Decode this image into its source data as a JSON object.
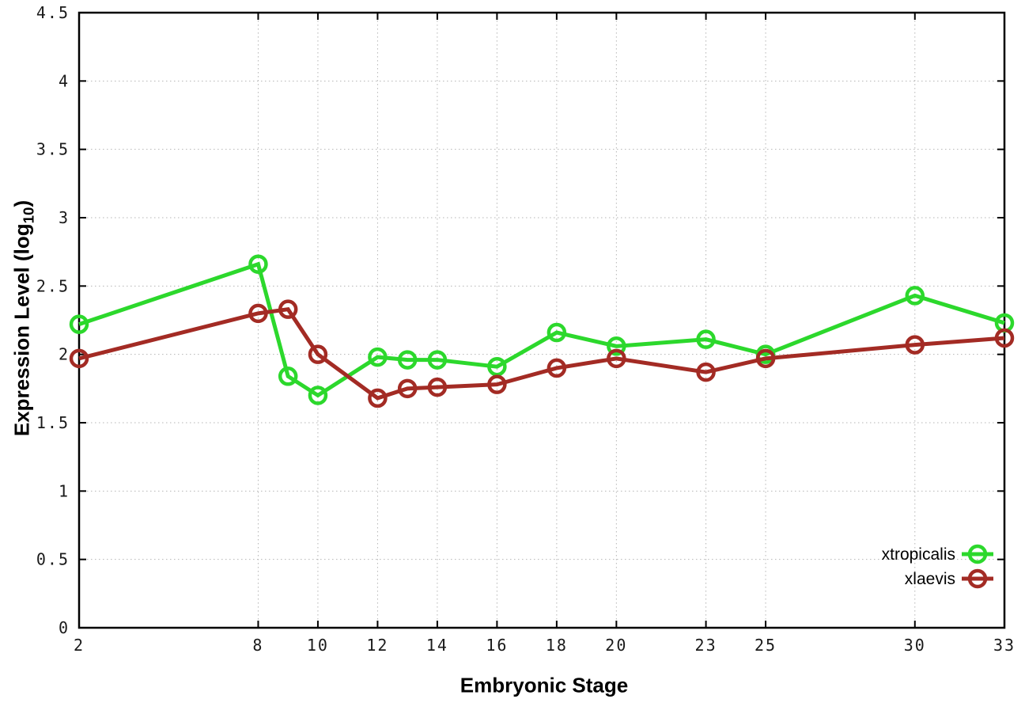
{
  "figure": {
    "background_color": "#ffffff",
    "border_color": "#000000",
    "grid_color": "#b5b5b5"
  },
  "chart_data": {
    "type": "line",
    "title": "",
    "xlabel": "Embryonic Stage",
    "ylabel": "Expression Level (log10)",
    "ylabel_parts": {
      "main": "Expression Level (log",
      "sub": "10",
      "suffix": ")"
    },
    "xlim": [
      2,
      33
    ],
    "ylim": [
      0,
      4.5
    ],
    "x_ticks": [
      2,
      8,
      10,
      12,
      14,
      16,
      18,
      20,
      23,
      25,
      30,
      33
    ],
    "y_ticks": [
      0,
      0.5,
      1,
      1.5,
      2,
      2.5,
      3,
      3.5,
      4,
      4.5
    ],
    "grid": "dotted",
    "legend_position": "inside-bottom-right",
    "x": [
      2,
      8,
      9,
      10,
      12,
      13,
      14,
      16,
      18,
      20,
      23,
      25,
      30,
      33
    ],
    "series": [
      {
        "name": "xtropicalis",
        "color": "#2cd82c",
        "marker": "open-circle",
        "values": [
          2.22,
          2.66,
          1.84,
          1.7,
          1.98,
          1.96,
          1.96,
          1.91,
          2.16,
          2.06,
          2.11,
          2.0,
          2.43,
          2.23
        ]
      },
      {
        "name": "xlaevis",
        "color": "#a32b24",
        "marker": "open-circle",
        "values": [
          1.97,
          2.3,
          2.33,
          2.0,
          1.68,
          1.75,
          1.76,
          1.78,
          1.9,
          1.97,
          1.87,
          1.97,
          2.07,
          2.12
        ]
      }
    ]
  }
}
